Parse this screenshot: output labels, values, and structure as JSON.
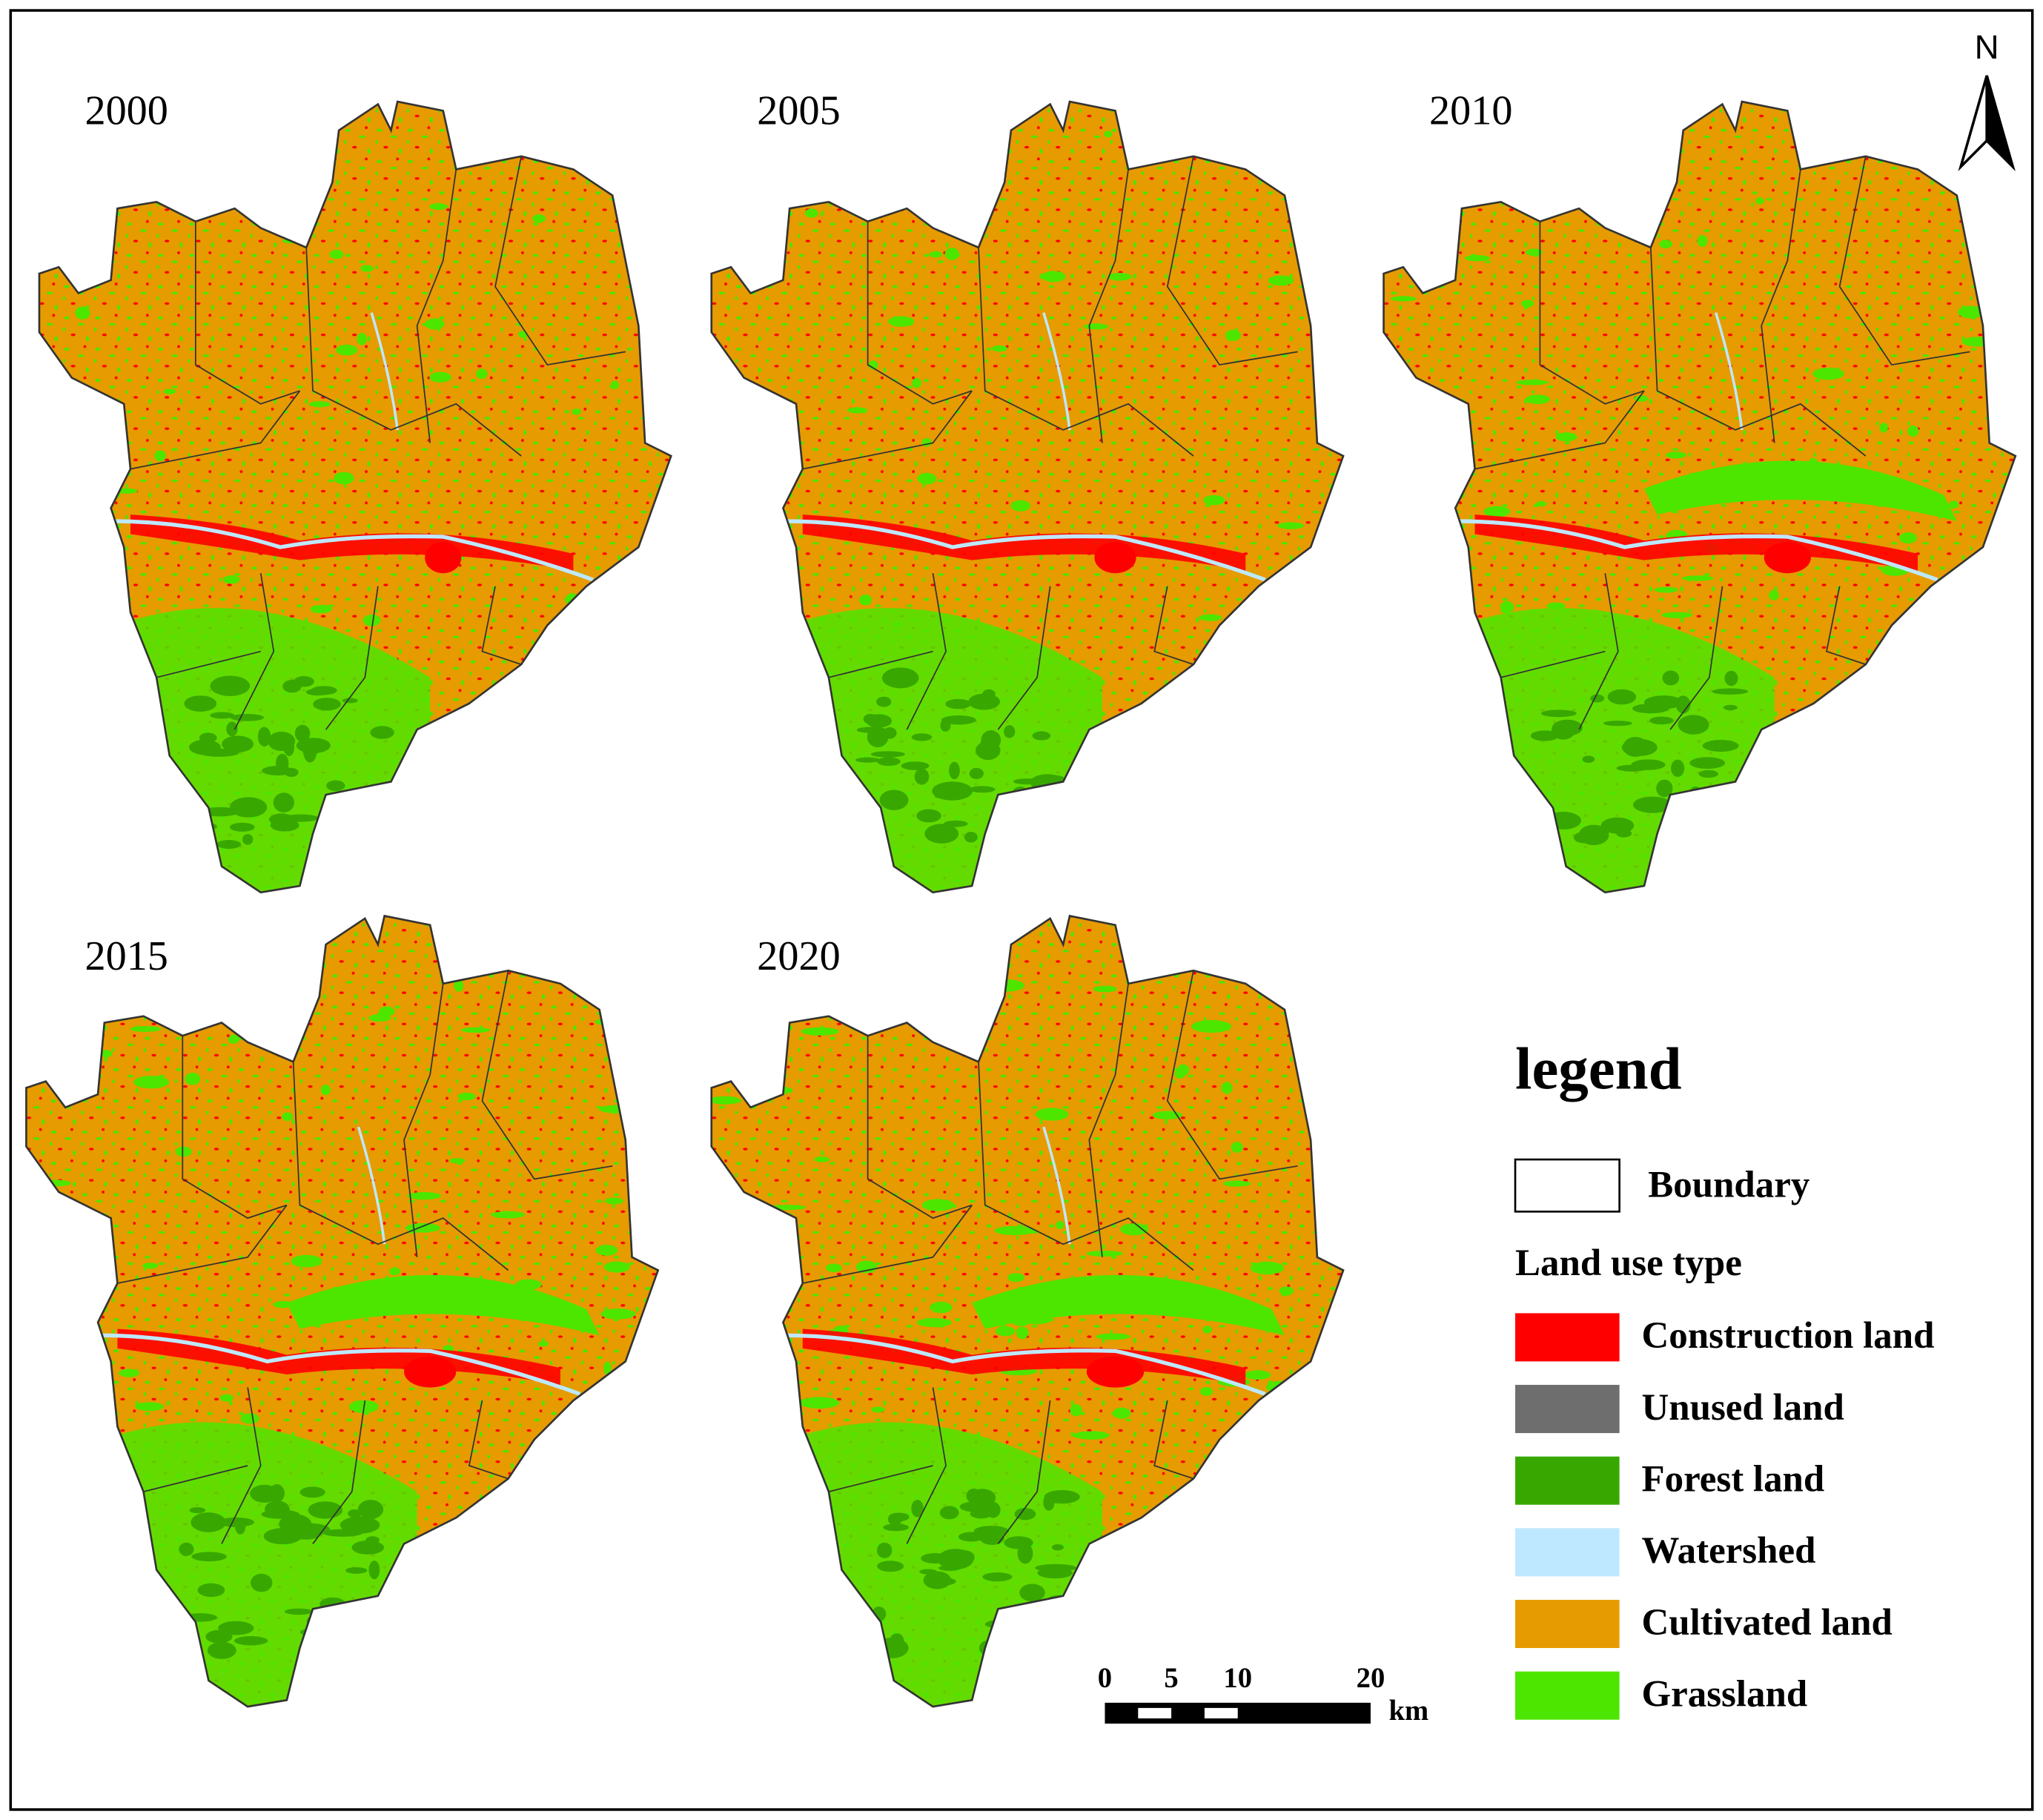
{
  "north": "N",
  "panels": [
    {
      "year": "2000"
    },
    {
      "year": "2005"
    },
    {
      "year": "2010"
    },
    {
      "year": "2015"
    },
    {
      "year": "2020"
    }
  ],
  "legend": {
    "title": "legend",
    "boundary": "Boundary",
    "group_title": "Land use type",
    "items": [
      {
        "label": "Construction land",
        "color": "#ff0000"
      },
      {
        "label": "Unused land",
        "color": "#6e6e6e"
      },
      {
        "label": "Forest land",
        "color": "#38a800"
      },
      {
        "label": "Watershed",
        "color": "#bee8ff"
      },
      {
        "label": "Cultivated land",
        "color": "#e69b00"
      },
      {
        "label": "Grassland",
        "color": "#4ce600"
      }
    ]
  },
  "scale_bar": {
    "ticks": [
      0,
      5,
      10,
      20
    ],
    "unit": "km"
  }
}
